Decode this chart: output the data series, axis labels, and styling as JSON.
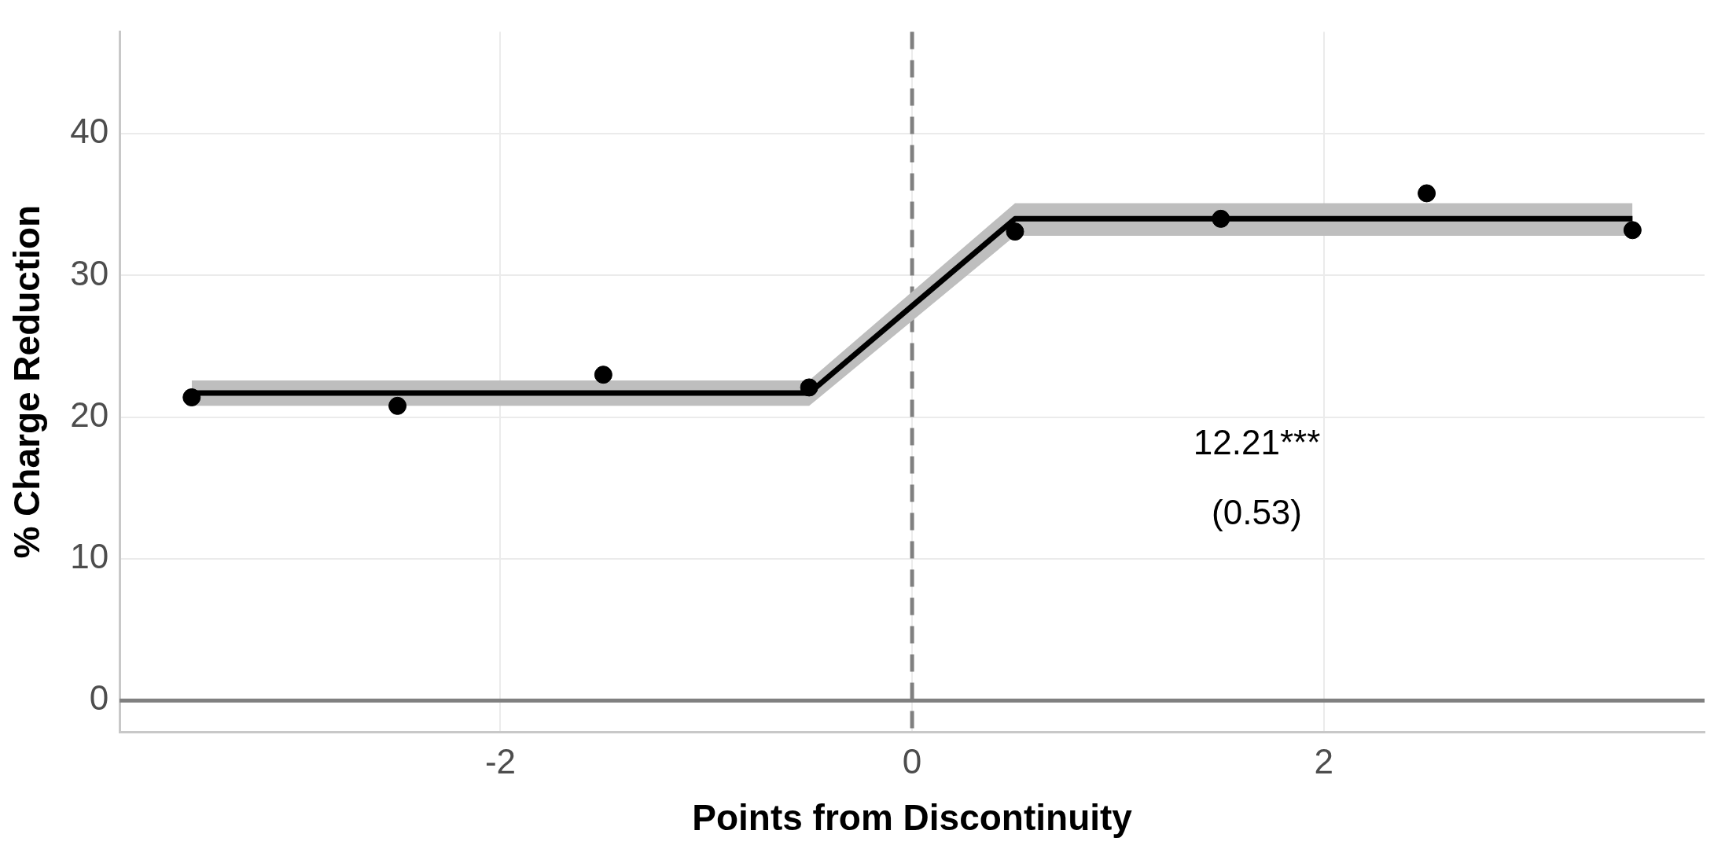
{
  "chart_data": {
    "type": "scatter",
    "xlabel": "Points from Discontinuity",
    "ylabel": "% Charge Reduction",
    "xlim": [
      -3.85,
      3.85
    ],
    "ylim": [
      -2.2,
      47.2
    ],
    "xticks": [
      -2,
      0,
      2
    ],
    "yticks": [
      0,
      10,
      20,
      30,
      40
    ],
    "grid": true,
    "legend": false,
    "series": [
      {
        "type": "line",
        "color": "#000000",
        "x": [
          -3.5,
          -0.5,
          0.5,
          3.5
        ],
        "values": [
          21.7,
          21.7,
          34.0,
          34.0
        ],
        "lower": [
          20.8,
          20.8,
          32.8,
          32.8
        ],
        "upper": [
          22.6,
          22.6,
          35.1,
          35.1
        ],
        "marker": "none",
        "line_style": "solid"
      },
      {
        "color": "#000000",
        "x": [
          -3.5,
          -2.5,
          -1.5,
          -0.5,
          0.5,
          1.5,
          2.5,
          3.5
        ],
        "values": [
          21.4,
          20.8,
          23.0,
          22.1,
          33.1,
          34.0,
          35.8,
          33.2
        ],
        "marker": "circle"
      }
    ],
    "ref_lines": [
      {
        "axis": "x",
        "value": 0,
        "color": "#808080",
        "line_style": "dashed"
      },
      {
        "axis": "y",
        "value": 0,
        "color": "#808080",
        "line_style": "solid"
      }
    ],
    "annotations": [
      "12.21***",
      "(0.53)"
    ]
  }
}
